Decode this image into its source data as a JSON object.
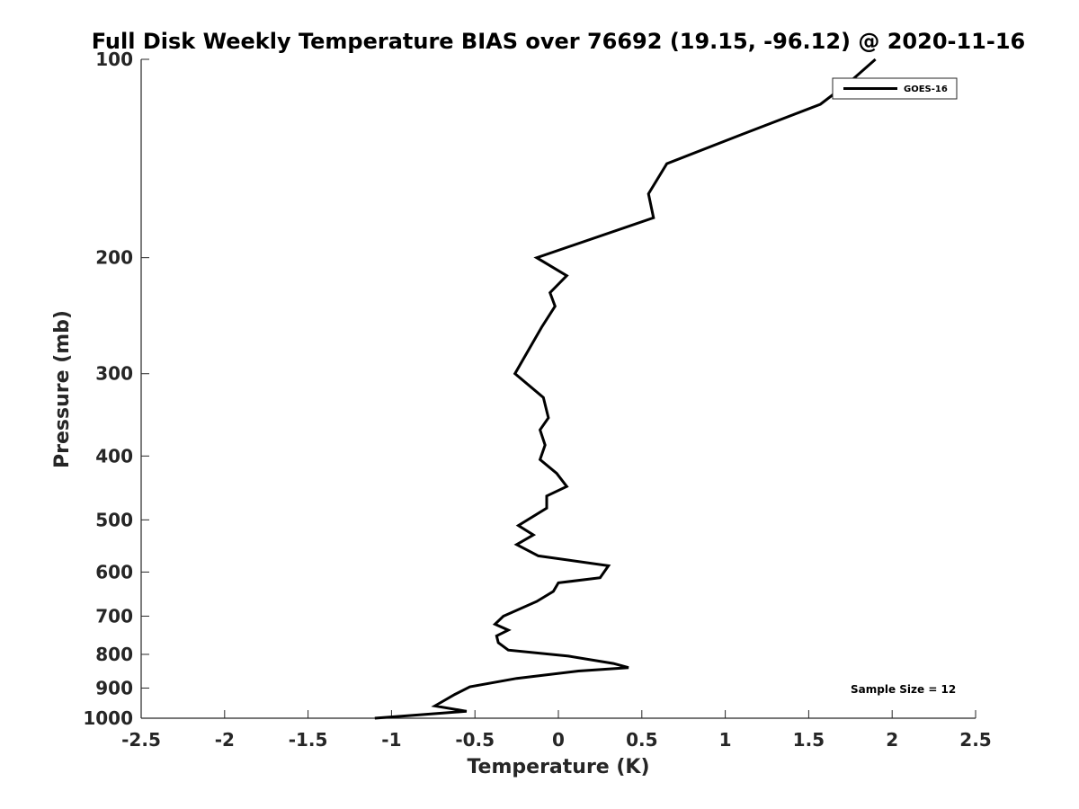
{
  "chart_data": {
    "type": "line",
    "title": "Full Disk Weekly Temperature BIAS over 76692 (19.15, -96.12) @ 2020-11-16",
    "xlabel": "Temperature (K)",
    "ylabel": "Pressure (mb)",
    "xlim": [
      -2.5,
      2.5
    ],
    "ylim": [
      1000,
      100
    ],
    "yscale": "log",
    "y_reversed": true,
    "xticks": [
      "-2.5",
      "-2",
      "-1.5",
      "-1",
      "-0.5",
      "0",
      "0.5",
      "1",
      "1.5",
      "2",
      "2.5"
    ],
    "yticks": [
      "100",
      "200",
      "300",
      "400",
      "500",
      "600",
      "700",
      "800",
      "900",
      "1000"
    ],
    "grid": false,
    "legend": {
      "position": "top-right",
      "entries": [
        "GOES-16"
      ]
    },
    "annotation": "Sample Size = 12",
    "series": [
      {
        "name": "GOES-16",
        "color": "#000000",
        "points": [
          [
            1.9,
            100
          ],
          [
            1.75,
            108
          ],
          [
            1.57,
            117
          ],
          [
            1.1,
            130
          ],
          [
            0.65,
            144
          ],
          [
            0.54,
            160
          ],
          [
            0.57,
            174
          ],
          [
            -0.13,
            200
          ],
          [
            0.05,
            213
          ],
          [
            -0.05,
            226
          ],
          [
            -0.02,
            237
          ],
          [
            -0.1,
            255
          ],
          [
            -0.26,
            300
          ],
          [
            -0.09,
            326
          ],
          [
            -0.06,
            350
          ],
          [
            -0.11,
            365
          ],
          [
            -0.08,
            385
          ],
          [
            -0.11,
            405
          ],
          [
            -0.01,
            425
          ],
          [
            0.05,
            445
          ],
          [
            -0.07,
            460
          ],
          [
            -0.07,
            480
          ],
          [
            -0.24,
            510
          ],
          [
            -0.15,
            527
          ],
          [
            -0.25,
            545
          ],
          [
            -0.12,
            567
          ],
          [
            0.3,
            587
          ],
          [
            0.25,
            612
          ],
          [
            0.0,
            623
          ],
          [
            -0.03,
            642
          ],
          [
            -0.13,
            665
          ],
          [
            -0.33,
            700
          ],
          [
            -0.38,
            720
          ],
          [
            -0.3,
            735
          ],
          [
            -0.37,
            750
          ],
          [
            -0.36,
            768
          ],
          [
            -0.3,
            788
          ],
          [
            0.06,
            805
          ],
          [
            0.33,
            826
          ],
          [
            0.42,
            838
          ],
          [
            0.12,
            848
          ],
          [
            -0.25,
            870
          ],
          [
            -0.53,
            896
          ],
          [
            -0.62,
            920
          ],
          [
            -0.7,
            945
          ],
          [
            -0.74,
            958
          ],
          [
            -0.55,
            976
          ],
          [
            -1.1,
            1000
          ]
        ]
      }
    ]
  }
}
